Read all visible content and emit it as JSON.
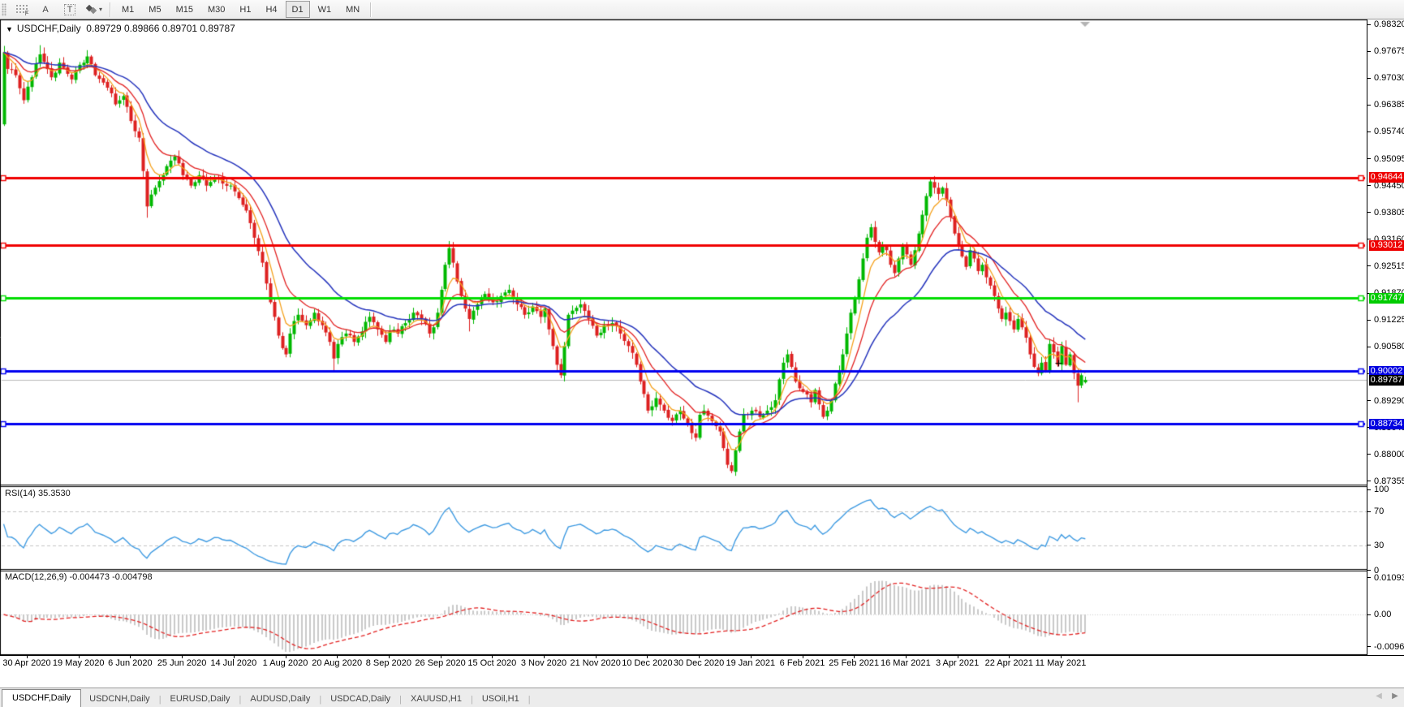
{
  "toolbar": {
    "font_tool_label": "A",
    "text_tool_label": "T",
    "timeframes": [
      {
        "label": "M1",
        "active": false
      },
      {
        "label": "M5",
        "active": false
      },
      {
        "label": "M15",
        "active": false
      },
      {
        "label": "M30",
        "active": false
      },
      {
        "label": "H1",
        "active": false
      },
      {
        "label": "H4",
        "active": false
      },
      {
        "label": "D1",
        "active": true
      },
      {
        "label": "W1",
        "active": false
      },
      {
        "label": "MN",
        "active": false
      }
    ]
  },
  "header": {
    "symbol": "USDCHF,Daily",
    "ohlc": "0.89729 0.89866 0.89701 0.89787"
  },
  "price_axis": {
    "ticks": [
      "0.98320",
      "0.97675",
      "0.97030",
      "0.96385",
      "0.95740",
      "0.95095",
      "0.94450",
      "0.93805",
      "0.93160",
      "0.92515",
      "0.91870",
      "0.91225",
      "0.90580",
      "0.89935",
      "0.89290",
      "0.88645",
      "0.88000",
      "0.87355"
    ]
  },
  "levels": [
    {
      "label": "0.94644",
      "value": 0.94644,
      "color": "#ee0000"
    },
    {
      "label": "0.93012",
      "value": 0.93012,
      "color": "#ee0000"
    },
    {
      "label": "0.91747",
      "value": 0.91747,
      "color": "#00cc00"
    },
    {
      "label": "0.90002",
      "value": 0.90002,
      "color": "#0000e0"
    },
    {
      "label": "0.88734",
      "value": 0.88734,
      "color": "#0000e0"
    }
  ],
  "current_price": {
    "label": "0.89787",
    "value": 0.89787,
    "bg": "#000000"
  },
  "rsi": {
    "label": "RSI(14) 35.3530",
    "period": 14,
    "last_value": 35.353,
    "axis": [
      {
        "label": "100",
        "value": 100
      },
      {
        "label": "70",
        "value": 70
      },
      {
        "label": "30",
        "value": 30
      },
      {
        "label": "0",
        "value": 0
      }
    ]
  },
  "macd": {
    "label": "MACD(12,26,9) -0.004473 -0.004798",
    "fast": 12,
    "slow": 26,
    "signal": 9,
    "last_main": -0.004473,
    "last_signal": -0.004798,
    "axis": [
      {
        "label": "0.010933",
        "value": 0.010933
      },
      {
        "label": "0.00",
        "value": 0
      },
      {
        "label": "-0.009653",
        "value": -0.009653
      }
    ]
  },
  "date_axis": {
    "labels": [
      "30 Apr 2020",
      "19 May 2020",
      "6 Jun 2020",
      "25 Jun 2020",
      "14 Jul 2020",
      "1 Aug 2020",
      "20 Aug 2020",
      "8 Sep 2020",
      "26 Sep 2020",
      "15 Oct 2020",
      "3 Nov 2020",
      "21 Nov 2020",
      "10 Dec 2020",
      "30 Dec 2020",
      "19 Jan 2021",
      "6 Feb 2021",
      "25 Feb 2021",
      "16 Mar 2021",
      "3 Apr 2021",
      "22 Apr 2021",
      "11 May 2021"
    ]
  },
  "tabs": {
    "items": [
      {
        "label": "USDCHF,Daily",
        "active": true
      },
      {
        "label": "USDCNH,Daily",
        "active": false
      },
      {
        "label": "EURUSD,Daily",
        "active": false
      },
      {
        "label": "AUDUSD,Daily",
        "active": false
      },
      {
        "label": "USDCAD,Daily",
        "active": false
      },
      {
        "label": "XAUUSD,H1",
        "active": false
      },
      {
        "label": "USOil,H1",
        "active": false
      }
    ]
  },
  "colors": {
    "candle_up": "#00b800",
    "candle_down": "#dd2020",
    "ma_fast": "#f5a11c",
    "ma_mid": "#e32222",
    "ma_slow": "#2534bd",
    "line_red": "#f00000",
    "line_green": "#00dd00",
    "line_blue": "#0000f0",
    "current_line": "#bdbdbd",
    "rsi_line": "#3f9be2",
    "macd_hist": "#c9c9c9",
    "macd_signal": "#e32222",
    "dashed_level": "#c4c4c4"
  },
  "chart_data": {
    "type": "candlestick-ohlc",
    "symbol": "USDCHF",
    "timeframe": "Daily",
    "visible_price_range": [
      0.87355,
      0.9832
    ],
    "x_range_dates": [
      "30 Apr 2020",
      "24 May 2021"
    ],
    "candles": 273,
    "noise": 0.0014,
    "price_keyframes": [
      [
        0,
        0.9765
      ],
      [
        1,
        0.9725
      ],
      [
        3,
        0.971
      ],
      [
        5,
        0.965
      ],
      [
        7,
        0.9705
      ],
      [
        9,
        0.976
      ],
      [
        12,
        0.9705
      ],
      [
        14,
        0.974
      ],
      [
        17,
        0.97
      ],
      [
        19,
        0.9735
      ],
      [
        21,
        0.9755
      ],
      [
        23,
        0.971
      ],
      [
        26,
        0.968
      ],
      [
        28,
        0.964
      ],
      [
        30,
        0.966
      ],
      [
        32,
        0.96
      ],
      [
        34,
        0.956
      ],
      [
        35,
        0.948
      ],
      [
        36,
        0.9395
      ],
      [
        38,
        0.944
      ],
      [
        40,
        0.947
      ],
      [
        42,
        0.9505
      ],
      [
        43,
        0.9515
      ],
      [
        45,
        0.947
      ],
      [
        47,
        0.9445
      ],
      [
        49,
        0.947
      ],
      [
        51,
        0.9445
      ],
      [
        53,
        0.9465
      ],
      [
        55,
        0.945
      ],
      [
        57,
        0.9445
      ],
      [
        59,
        0.9415
      ],
      [
        61,
        0.9385
      ],
      [
        63,
        0.932
      ],
      [
        65,
        0.926
      ],
      [
        66,
        0.921
      ],
      [
        67,
        0.9165
      ],
      [
        68,
        0.913
      ],
      [
        69,
        0.9085
      ],
      [
        70,
        0.9055
      ],
      [
        71,
        0.904
      ],
      [
        72,
        0.909
      ],
      [
        73,
        0.912
      ],
      [
        74,
        0.9135
      ],
      [
        76,
        0.911
      ],
      [
        78,
        0.914
      ],
      [
        80,
        0.911
      ],
      [
        82,
        0.907
      ],
      [
        83,
        0.903
      ],
      [
        84,
        0.9065
      ],
      [
        86,
        0.909
      ],
      [
        88,
        0.907
      ],
      [
        90,
        0.9095
      ],
      [
        92,
        0.913
      ],
      [
        94,
        0.91
      ],
      [
        96,
        0.907
      ],
      [
        97,
        0.9095
      ],
      [
        99,
        0.909
      ],
      [
        101,
        0.9115
      ],
      [
        103,
        0.914
      ],
      [
        105,
        0.9125
      ],
      [
        107,
        0.909
      ],
      [
        108,
        0.9105
      ],
      [
        109,
        0.914
      ],
      [
        110,
        0.9195
      ],
      [
        111,
        0.9255
      ],
      [
        112,
        0.9295
      ],
      [
        113,
        0.926
      ],
      [
        114,
        0.9215
      ],
      [
        115,
        0.918
      ],
      [
        116,
        0.915
      ],
      [
        117,
        0.9125
      ],
      [
        118,
        0.9145
      ],
      [
        119,
        0.916
      ],
      [
        121,
        0.9185
      ],
      [
        123,
        0.9165
      ],
      [
        125,
        0.918
      ],
      [
        127,
        0.9195
      ],
      [
        129,
        0.916
      ],
      [
        131,
        0.9135
      ],
      [
        133,
        0.9155
      ],
      [
        135,
        0.913
      ],
      [
        136,
        0.915
      ],
      [
        137,
        0.91
      ],
      [
        138,
        0.906
      ],
      [
        139,
        0.9015
      ],
      [
        140,
        0.899
      ],
      [
        141,
        0.906
      ],
      [
        142,
        0.9135
      ],
      [
        143,
        0.9145
      ],
      [
        145,
        0.916
      ],
      [
        147,
        0.9125
      ],
      [
        149,
        0.9085
      ],
      [
        151,
        0.911
      ],
      [
        153,
        0.9115
      ],
      [
        155,
        0.909
      ],
      [
        157,
        0.906
      ],
      [
        159,
        0.9015
      ],
      [
        160,
        0.8975
      ],
      [
        161,
        0.8945
      ],
      [
        162,
        0.8905
      ],
      [
        164,
        0.8935
      ],
      [
        166,
        0.8905
      ],
      [
        168,
        0.888
      ],
      [
        170,
        0.8905
      ],
      [
        172,
        0.887
      ],
      [
        174,
        0.884
      ],
      [
        175,
        0.8895
      ],
      [
        176,
        0.8905
      ],
      [
        178,
        0.888
      ],
      [
        180,
        0.8855
      ],
      [
        181,
        0.8815
      ],
      [
        182,
        0.8775
      ],
      [
        183,
        0.876
      ],
      [
        184,
        0.881
      ],
      [
        185,
        0.8855
      ],
      [
        186,
        0.8895
      ],
      [
        188,
        0.8905
      ],
      [
        190,
        0.889
      ],
      [
        192,
        0.8905
      ],
      [
        194,
        0.893
      ],
      [
        195,
        0.898
      ],
      [
        196,
        0.902
      ],
      [
        197,
        0.904
      ],
      [
        198,
        0.901
      ],
      [
        199,
        0.8975
      ],
      [
        201,
        0.895
      ],
      [
        203,
        0.8925
      ],
      [
        204,
        0.8955
      ],
      [
        205,
        0.892
      ],
      [
        206,
        0.889
      ],
      [
        207,
        0.8905
      ],
      [
        208,
        0.893
      ],
      [
        209,
        0.897
      ],
      [
        210,
        0.9
      ],
      [
        211,
        0.904
      ],
      [
        212,
        0.909
      ],
      [
        213,
        0.914
      ],
      [
        214,
        0.9175
      ],
      [
        215,
        0.922
      ],
      [
        216,
        0.927
      ],
      [
        217,
        0.932
      ],
      [
        218,
        0.9345
      ],
      [
        219,
        0.931
      ],
      [
        220,
        0.9285
      ],
      [
        221,
        0.93
      ],
      [
        222,
        0.929
      ],
      [
        223,
        0.9255
      ],
      [
        224,
        0.9235
      ],
      [
        225,
        0.927
      ],
      [
        226,
        0.93
      ],
      [
        227,
        0.928
      ],
      [
        228,
        0.9255
      ],
      [
        229,
        0.929
      ],
      [
        230,
        0.933
      ],
      [
        231,
        0.9375
      ],
      [
        232,
        0.942
      ],
      [
        233,
        0.9455
      ],
      [
        234,
        0.944
      ],
      [
        235,
        0.9425
      ],
      [
        236,
        0.944
      ],
      [
        237,
        0.941
      ],
      [
        238,
        0.937
      ],
      [
        239,
        0.933
      ],
      [
        240,
        0.93
      ],
      [
        241,
        0.9275
      ],
      [
        242,
        0.925
      ],
      [
        243,
        0.929
      ],
      [
        244,
        0.927
      ],
      [
        245,
        0.924
      ],
      [
        246,
        0.9255
      ],
      [
        247,
        0.9225
      ],
      [
        248,
        0.9205
      ],
      [
        249,
        0.918
      ],
      [
        250,
        0.915
      ],
      [
        251,
        0.9125
      ],
      [
        252,
        0.914
      ],
      [
        253,
        0.912
      ],
      [
        254,
        0.91
      ],
      [
        255,
        0.9125
      ],
      [
        256,
        0.9105
      ],
      [
        257,
        0.908
      ],
      [
        258,
        0.904
      ],
      [
        259,
        0.901
      ],
      [
        260,
        0.8995
      ],
      [
        261,
        0.902
      ],
      [
        262,
        0.9
      ],
      [
        263,
        0.9065
      ],
      [
        264,
        0.9045
      ],
      [
        265,
        0.9015
      ],
      [
        266,
        0.906
      ],
      [
        267,
        0.9015
      ],
      [
        268,
        0.904
      ],
      [
        269,
        0.8995
      ],
      [
        270,
        0.8965
      ],
      [
        271,
        0.899
      ],
      [
        272,
        0.89787
      ]
    ],
    "overrides": [
      {
        "i": 0,
        "o": 0.9592,
        "l": 0.9588
      },
      {
        "i": 9,
        "h": 0.9782
      },
      {
        "i": 36,
        "l": 0.9368
      },
      {
        "i": 71,
        "l": 0.9033
      },
      {
        "i": 83,
        "l": 0.8998
      },
      {
        "i": 112,
        "h": 0.9312
      },
      {
        "i": 117,
        "l": 0.9095
      },
      {
        "i": 140,
        "l": 0.8983
      },
      {
        "i": 183,
        "l": 0.8755
      },
      {
        "i": 233,
        "h": 0.9465
      },
      {
        "i": 270,
        "l": 0.8925
      },
      {
        "i": 272,
        "o": 0.89729,
        "h": 0.89866,
        "l": 0.89701,
        "c": 0.89787
      }
    ],
    "moving_averages": [
      {
        "type": "EMA",
        "period": 6,
        "color_key": "ma_fast"
      },
      {
        "type": "EMA",
        "period": 13,
        "color_key": "ma_mid"
      },
      {
        "type": "EMA",
        "period": 28,
        "color_key": "ma_slow"
      }
    ],
    "horizontal_lines": [
      0.94644,
      0.93012,
      0.91747,
      0.90002,
      0.88734
    ],
    "indicators": [
      {
        "name": "RSI",
        "period": 14,
        "last": 35.353,
        "levels": [
          70,
          30
        ]
      },
      {
        "name": "MACD",
        "fast": 12,
        "slow": 26,
        "signal": 9,
        "last_main": -0.004473,
        "last_signal": -0.004798
      }
    ]
  }
}
